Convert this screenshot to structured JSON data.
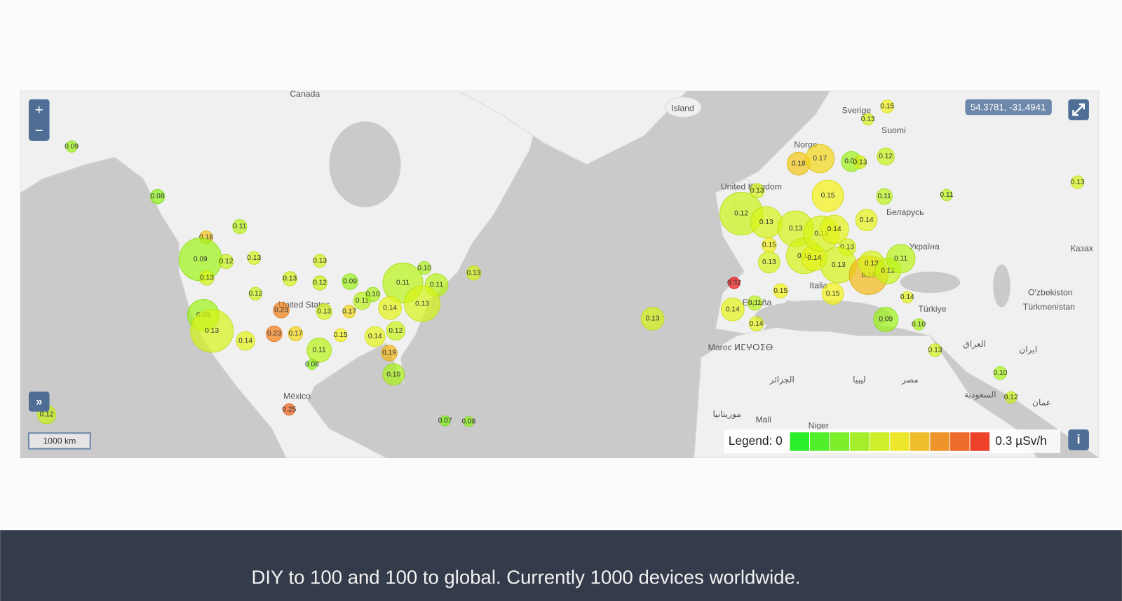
{
  "map": {
    "zoom_in": "+",
    "zoom_out": "−",
    "coordinates": "54.3781, -31.4941",
    "expand_button": "»",
    "scale": "1000 km",
    "info": "i",
    "legend": {
      "label": "Legend: 0",
      "max_label": "0.3 µSv/h"
    },
    "places": [
      "Canada",
      "Island",
      "Sverige",
      "Suomi",
      "Norge",
      "United Kingdom",
      "Беларусь",
      "Україна",
      "Казах",
      "O'zbekiston",
      "Türkmenistan",
      "Türkiye",
      "España",
      "Italia",
      "United States",
      "México",
      "Maroc ⵍⵎⵖⵔⵉⴱ",
      "الجزائر",
      "ليبيا",
      "مصر",
      "Mali",
      "Niger",
      "موريتانيا",
      "العراق",
      "ایران",
      "السعودية",
      "عمان"
    ],
    "readings": [
      "0.09",
      "0.08",
      "0.11",
      "0.18",
      "0.09",
      "0.12",
      "0.13",
      "0.13",
      "0.13",
      "0.13",
      "0.12",
      "0.09",
      "0.12",
      "0.23",
      "0.13",
      "0.17",
      "0.09",
      "0.13",
      "0.14",
      "0.23",
      "0.17",
      "0.15",
      "0.11",
      "0.08",
      "0.14",
      "0.12",
      "0.19",
      "0.10",
      "0.25",
      "0.12",
      "0.11",
      "0.10",
      "0.11",
      "0.13",
      "0.11",
      "0.10",
      "0.14",
      "0.13",
      "0.07",
      "0.08",
      "0.13",
      "0.32",
      "0.14",
      "0.11",
      "0.14",
      "0.15",
      "0.12",
      "0.13",
      "0.13",
      "0.15",
      "0.13",
      "0.13",
      "0.13",
      "0.14",
      "0.13",
      "0.14",
      "0.15",
      "0.18",
      "0.17",
      "0.09",
      "0.13",
      "0.12",
      "0.15",
      "0.13",
      "0.11",
      "0.11",
      "0.13",
      "0.14",
      "0.13",
      "0.13",
      "0.19",
      "0.13",
      "0.12",
      "0.11",
      "0.15",
      "0.14",
      "0.09",
      "0.10",
      "0.13",
      "0.10",
      "0.12"
    ]
  },
  "caption": "DIY to 100 and 100 to global. Currently 1000 devices worldwide."
}
